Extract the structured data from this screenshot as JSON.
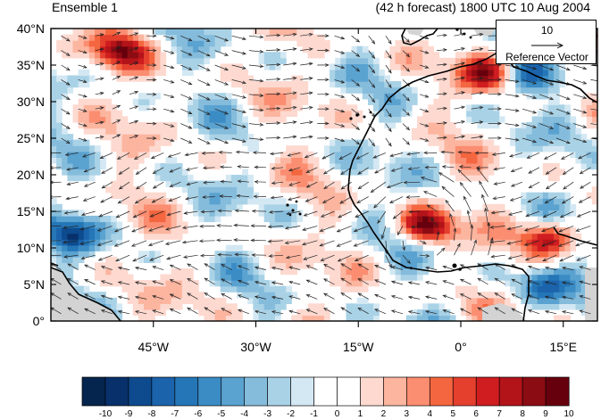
{
  "titles": {
    "left": "Ensemble 1",
    "right": "(42 h forecast) 1800 UTC 10 Aug 2004"
  },
  "map": {
    "lon_range": [
      -60,
      20
    ],
    "lat_range": [
      0,
      40
    ],
    "y_ticks": [
      "0°",
      "5°N",
      "10°N",
      "15°N",
      "20°N",
      "25°N",
      "30°N",
      "35°N",
      "40°N"
    ],
    "x_ticks": [
      "45°W",
      "30°W",
      "15°W",
      "0°",
      "15°E"
    ],
    "land_mask_color": "#d3d3d3",
    "coastline_color": "#000000"
  },
  "reference_vector": {
    "magnitude": "10",
    "label": "Reference Vector"
  },
  "colorbar": {
    "labels": [
      "-10",
      "-9",
      "-8",
      "-7",
      "-6",
      "-5",
      "-4",
      "-3",
      "-2",
      "-1",
      "0",
      "1",
      "2",
      "3",
      "4",
      "5",
      "6",
      "7",
      "8",
      "9",
      "10"
    ],
    "colors": [
      "#05254e",
      "#08306b",
      "#0d4a8e",
      "#1b63ab",
      "#2476b7",
      "#3b8cc5",
      "#5aa2d0",
      "#85bcdc",
      "#a9d2e6",
      "#d3e8f3",
      "#ffffff",
      "#ffffff",
      "#fdd9d0",
      "#fcb59f",
      "#fb8d71",
      "#f4663f",
      "#e4402d",
      "#cf1d20",
      "#b3141a",
      "#8c0c13",
      "#67000d"
    ]
  },
  "field_features": [
    {
      "kind": "positive",
      "lon": -5,
      "lat": 13,
      "strength": 1.0
    },
    {
      "kind": "positive",
      "lon": 13,
      "lat": 11.5,
      "strength": 0.9
    },
    {
      "kind": "positive",
      "lon": 4,
      "lat": 34,
      "strength": 0.8
    },
    {
      "kind": "positive",
      "lon": -50,
      "lat": 37,
      "strength": 0.8
    },
    {
      "kind": "negative",
      "lon": -57,
      "lat": 12,
      "strength": 0.7
    },
    {
      "kind": "negative",
      "lon": 10,
      "lat": 33,
      "strength": 0.6
    },
    {
      "kind": "negative",
      "lon": 12,
      "lat": 5,
      "strength": 0.6
    }
  ]
}
